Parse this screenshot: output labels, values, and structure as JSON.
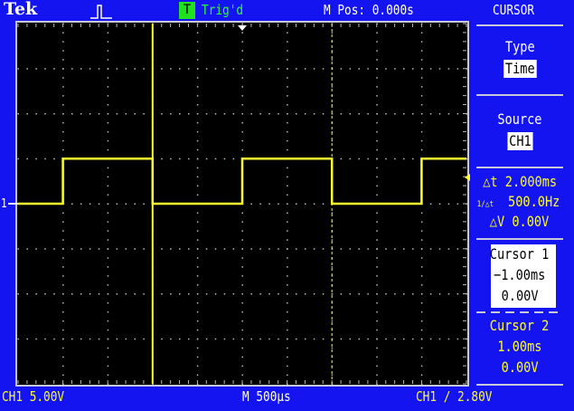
{
  "header": {
    "brand": "Tek",
    "trigger_badge": "T",
    "trigger_status": "Trig'd",
    "position": "M Pos: 0.000s",
    "menu_title": "CURSOR"
  },
  "menu": {
    "type_label": "Type",
    "type_value": "Time",
    "source_label": "Source",
    "source_value": "CH1",
    "delta_t": "△t 2.000ms",
    "freq": "500.0Hz",
    "freq_prefix": "1/△t",
    "delta_v": "△V 0.00V",
    "cursor1": {
      "label": "Cursor 1",
      "time": "−1.00ms",
      "volts": "0.00V"
    },
    "cursor2": {
      "label": "Cursor 2",
      "time": "1.00ms",
      "volts": "0.00V"
    }
  },
  "footer": {
    "ch1_scale": "CH1  5.00V",
    "timebase": "M 500µs",
    "trigger": "CH1 ∕ 2.80V"
  },
  "channel_marker": "1",
  "colors": {
    "background": "#1414f0",
    "trace": "#ffff30",
    "trigger_ok": "#30ff30"
  },
  "waveform": {
    "type": "square",
    "period_ms": 2.0,
    "frequency_hz": 500,
    "low_v": 0,
    "high_v": 5,
    "first_rise_ms": -2.0,
    "cursor1_ms": -1.0,
    "cursor2_ms": 1.0,
    "time_per_div_ms": 0.5,
    "volts_per_div": 5
  }
}
